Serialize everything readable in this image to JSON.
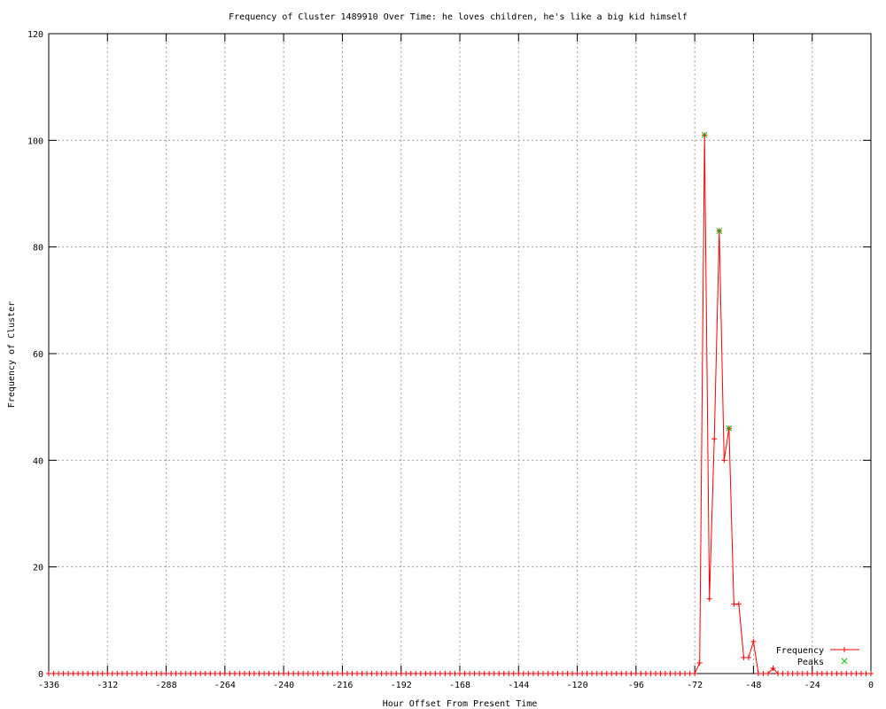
{
  "chart_data": {
    "type": "line",
    "title": "Frequency of Cluster 1489910 Over Time: he loves children, he's like a big kid himself",
    "xlabel": "Hour Offset From Present Time",
    "ylabel": "Frequency of Cluster",
    "xlim": [
      -336,
      0
    ],
    "ylim": [
      0,
      120
    ],
    "xticks": [
      -336,
      -312,
      -288,
      -264,
      -240,
      -216,
      -192,
      -168,
      -144,
      -120,
      -96,
      -72,
      -48,
      -24,
      0
    ],
    "yticks": [
      0,
      20,
      40,
      60,
      80,
      100,
      120
    ],
    "grid": true,
    "legend_placement": "bottom-right",
    "colors": {
      "frequency": "#ff0000",
      "peaks": "#00c000"
    },
    "series": [
      {
        "name": "Frequency",
        "x": [
          -336,
          -334,
          -332,
          -330,
          -328,
          -326,
          -324,
          -322,
          -320,
          -318,
          -316,
          -314,
          -312,
          -310,
          -308,
          -306,
          -304,
          -302,
          -300,
          -298,
          -296,
          -294,
          -292,
          -290,
          -288,
          -286,
          -284,
          -282,
          -280,
          -278,
          -276,
          -274,
          -272,
          -270,
          -268,
          -266,
          -264,
          -262,
          -260,
          -258,
          -256,
          -254,
          -252,
          -250,
          -248,
          -246,
          -244,
          -242,
          -240,
          -238,
          -236,
          -234,
          -232,
          -230,
          -228,
          -226,
          -224,
          -222,
          -220,
          -218,
          -216,
          -214,
          -212,
          -210,
          -208,
          -206,
          -204,
          -202,
          -200,
          -198,
          -196,
          -194,
          -192,
          -190,
          -188,
          -186,
          -184,
          -182,
          -180,
          -178,
          -176,
          -174,
          -172,
          -170,
          -168,
          -166,
          -164,
          -162,
          -160,
          -158,
          -156,
          -154,
          -152,
          -150,
          -148,
          -146,
          -144,
          -142,
          -140,
          -138,
          -136,
          -134,
          -132,
          -130,
          -128,
          -126,
          -124,
          -122,
          -120,
          -118,
          -116,
          -114,
          -112,
          -110,
          -108,
          -106,
          -104,
          -102,
          -100,
          -98,
          -96,
          -94,
          -92,
          -90,
          -88,
          -86,
          -84,
          -82,
          -80,
          -78,
          -76,
          -74,
          -72,
          -70,
          -68,
          -66,
          -64,
          -62,
          -60,
          -58,
          -56,
          -54,
          -52,
          -50,
          -48,
          -46,
          -44,
          -42,
          -40,
          -38,
          -36,
          -34,
          -32,
          -30,
          -28,
          -26,
          -24,
          -22,
          -20,
          -18,
          -16,
          -14,
          -12,
          -10,
          -8,
          -6,
          -4,
          -2,
          0
        ],
        "y": [
          0,
          0,
          0,
          0,
          0,
          0,
          0,
          0,
          0,
          0,
          0,
          0,
          0,
          0,
          0,
          0,
          0,
          0,
          0,
          0,
          0,
          0,
          0,
          0,
          0,
          0,
          0,
          0,
          0,
          0,
          0,
          0,
          0,
          0,
          0,
          0,
          0,
          0,
          0,
          0,
          0,
          0,
          0,
          0,
          0,
          0,
          0,
          0,
          0,
          0,
          0,
          0,
          0,
          0,
          0,
          0,
          0,
          0,
          0,
          0,
          0,
          0,
          0,
          0,
          0,
          0,
          0,
          0,
          0,
          0,
          0,
          0,
          0,
          0,
          0,
          0,
          0,
          0,
          0,
          0,
          0,
          0,
          0,
          0,
          0,
          0,
          0,
          0,
          0,
          0,
          0,
          0,
          0,
          0,
          0,
          0,
          0,
          0,
          0,
          0,
          0,
          0,
          0,
          0,
          0,
          0,
          0,
          0,
          0,
          0,
          0,
          0,
          0,
          0,
          0,
          0,
          0,
          0,
          0,
          0,
          0,
          0,
          0,
          0,
          0,
          0,
          0,
          0,
          0,
          0,
          0,
          0,
          0,
          2,
          101,
          14,
          44,
          83,
          40,
          46,
          13,
          13,
          3,
          3,
          6,
          0,
          0,
          0,
          1,
          0,
          0,
          0,
          0,
          0,
          0,
          0,
          0,
          0,
          0,
          0,
          0,
          0,
          0,
          0,
          0,
          0,
          0,
          0,
          0
        ]
      },
      {
        "name": "Peaks",
        "x": [
          -68,
          -62,
          -58
        ],
        "y": [
          101,
          83,
          46
        ]
      }
    ]
  }
}
